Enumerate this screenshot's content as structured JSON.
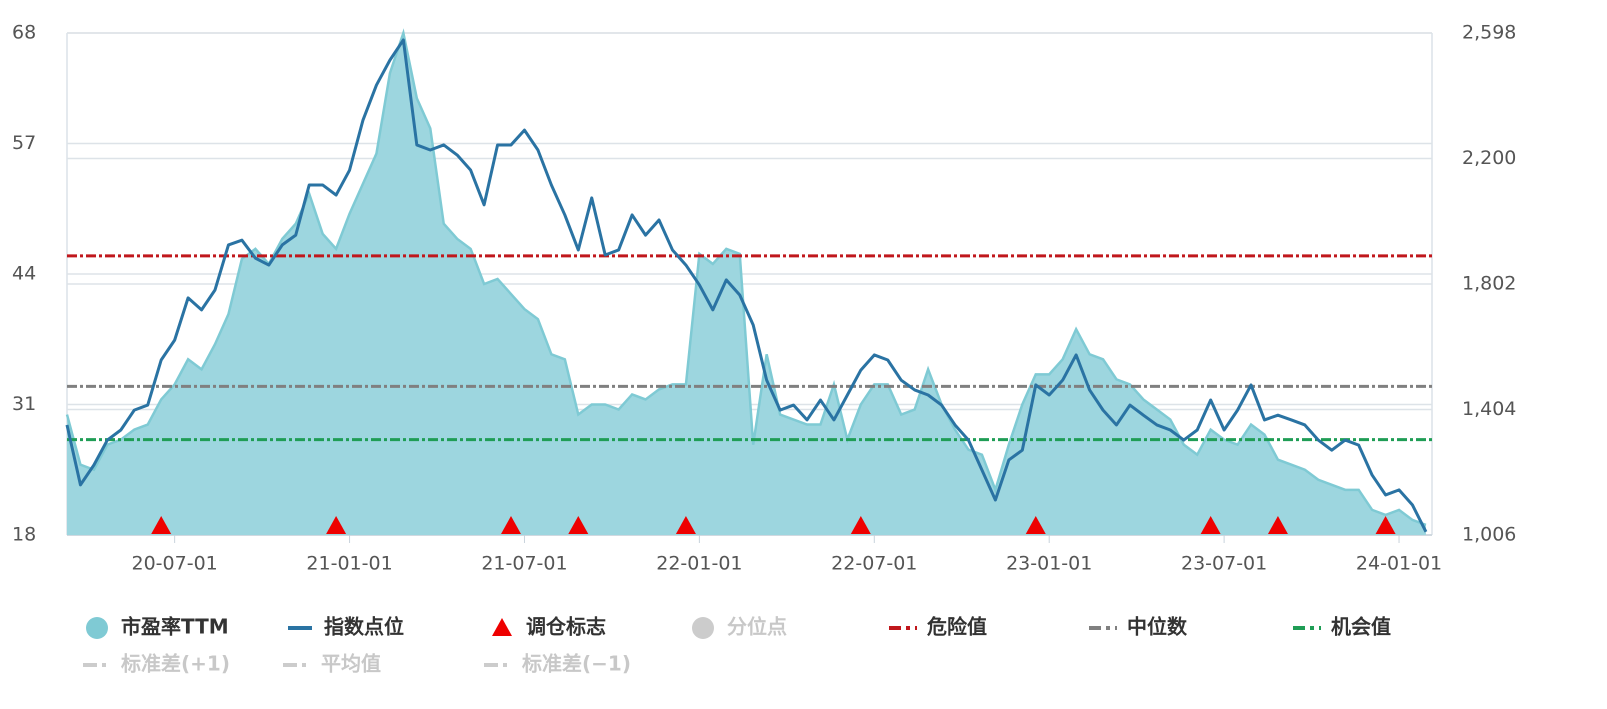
{
  "chart_data": {
    "type": "area-line",
    "categories": [
      null,
      null,
      null,
      null,
      null,
      null,
      null,
      null,
      "20-07-01",
      null,
      null,
      null,
      null,
      null,
      null,
      null,
      null,
      null,
      null,
      null,
      null,
      "21-01-01",
      null,
      null,
      null,
      null,
      null,
      null,
      null,
      null,
      null,
      null,
      null,
      null,
      "21-07-01",
      null,
      null,
      null,
      null,
      null,
      null,
      null,
      null,
      null,
      null,
      null,
      null,
      "22-01-01",
      null,
      null,
      null,
      null,
      null,
      null,
      null,
      null,
      null,
      null,
      null,
      null,
      "22-07-01",
      null,
      null,
      null,
      null,
      null,
      null,
      null,
      null,
      null,
      null,
      null,
      null,
      "23-01-01",
      null,
      null,
      null,
      null,
      null,
      null,
      null,
      null,
      null,
      null,
      null,
      null,
      "23-07-01",
      null,
      null,
      null,
      null,
      null,
      null,
      null,
      null,
      null,
      null,
      null,
      null,
      "24-01-01",
      null,
      null
    ],
    "series": [
      {
        "name": "市盈率TTM",
        "color": "#7fcad4",
        "fill": "#9dd6df",
        "axis": "y",
        "values": [
          30,
          25,
          24.5,
          27,
          27.5,
          28.5,
          29,
          31.5,
          33,
          35.5,
          34.5,
          37,
          40,
          45.5,
          46.5,
          45,
          47.5,
          49,
          52,
          48,
          46.5,
          50,
          53,
          56,
          64,
          68,
          61.5,
          58.5,
          49,
          47.5,
          46.5,
          43,
          43.5,
          42,
          40.5,
          39.5,
          36,
          35.5,
          30,
          31,
          31,
          30.5,
          32,
          31.5,
          32.5,
          33,
          33,
          46,
          45,
          46.5,
          46,
          27,
          36,
          30,
          29.5,
          29,
          29,
          33,
          27.5,
          31,
          33,
          33,
          30,
          30.5,
          34.5,
          31,
          28.5,
          26.5,
          26,
          22.5,
          27,
          31,
          34,
          34,
          35.5,
          38.5,
          36,
          35.5,
          33.5,
          33,
          31.5,
          30.5,
          29.5,
          27,
          26,
          28.5,
          27.5,
          27,
          29,
          28,
          25.5,
          25,
          24.5,
          23.5,
          23,
          22.5,
          22.5,
          20.5,
          20,
          20.5,
          19.5,
          19
        ]
      },
      {
        "name": "指数点位",
        "color": "#2a73a3",
        "axis": "y2",
        "values": [
          1355,
          1165,
          1228,
          1307,
          1339,
          1402,
          1418,
          1561,
          1624,
          1758,
          1720,
          1783,
          1926,
          1941,
          1884,
          1862,
          1926,
          1957,
          2116,
          2116,
          2084,
          2163,
          2322,
          2433,
          2512,
          2576,
          2243,
          2227,
          2243,
          2211,
          2163,
          2053,
          2243,
          2243,
          2290,
          2227,
          2116,
          2021,
          1910,
          2075,
          1894,
          1910,
          2021,
          1957,
          2005,
          1910,
          1862,
          1799,
          1720,
          1815,
          1767,
          1672,
          1497,
          1402,
          1418,
          1371,
          1434,
          1371,
          1450,
          1529,
          1577,
          1561,
          1497,
          1466,
          1450,
          1418,
          1355,
          1307,
          1212,
          1117,
          1244,
          1275,
          1482,
          1450,
          1497,
          1577,
          1466,
          1402,
          1355,
          1418,
          1386,
          1355,
          1339,
          1307,
          1339,
          1434,
          1339,
          1402,
          1482,
          1371,
          1386,
          1371,
          1355,
          1307,
          1275,
          1307,
          1291,
          1196,
          1133,
          1149,
          1101,
          1016
        ]
      },
      {
        "name": "调仓标志",
        "color": "#ee0000",
        "axis": "y",
        "values": [
          null,
          null,
          null,
          null,
          null,
          null,
          null,
          18,
          null,
          null,
          null,
          null,
          null,
          null,
          null,
          null,
          null,
          null,
          null,
          null,
          18,
          null,
          null,
          null,
          null,
          null,
          null,
          null,
          null,
          null,
          null,
          null,
          null,
          18,
          null,
          null,
          null,
          null,
          18,
          null,
          null,
          null,
          null,
          null,
          null,
          null,
          18,
          null,
          null,
          null,
          null,
          null,
          null,
          null,
          null,
          null,
          null,
          null,
          null,
          18,
          null,
          null,
          null,
          null,
          null,
          null,
          null,
          null,
          null,
          null,
          null,
          null,
          18,
          null,
          null,
          null,
          null,
          null,
          null,
          null,
          null,
          null,
          null,
          null,
          null,
          18,
          null,
          null,
          null,
          null,
          18,
          null,
          null,
          null,
          null,
          null,
          null,
          null,
          18,
          null,
          null,
          null
        ]
      }
    ],
    "reference_lines": [
      {
        "name": "危险值",
        "value": 45.8,
        "color": "#c0171c"
      },
      {
        "name": "中位数",
        "value": 32.8,
        "color": "#808080"
      },
      {
        "name": "机会值",
        "value": 27.5,
        "color": "#1f9d55"
      }
    ],
    "inactive_legend": [
      {
        "name": "分位点",
        "symbol": "circle"
      },
      {
        "name": "标准差(+1)",
        "symbol": "dash"
      },
      {
        "name": "平均值",
        "symbol": "dash"
      },
      {
        "name": "标准差(−1)",
        "symbol": "dash"
      }
    ],
    "ylim": [
      18,
      68
    ],
    "yticks": [
      18,
      31,
      44,
      57,
      68
    ],
    "y2lim": [
      1006,
      2598
    ],
    "y2ticks": [
      {
        "value": 1006,
        "label": "1,006"
      },
      {
        "value": 1404,
        "label": "1,404"
      },
      {
        "value": 1802,
        "label": "1,802"
      },
      {
        "value": 2200,
        "label": "2,200"
      },
      {
        "value": 2598,
        "label": "2,598"
      }
    ],
    "grid": true
  }
}
